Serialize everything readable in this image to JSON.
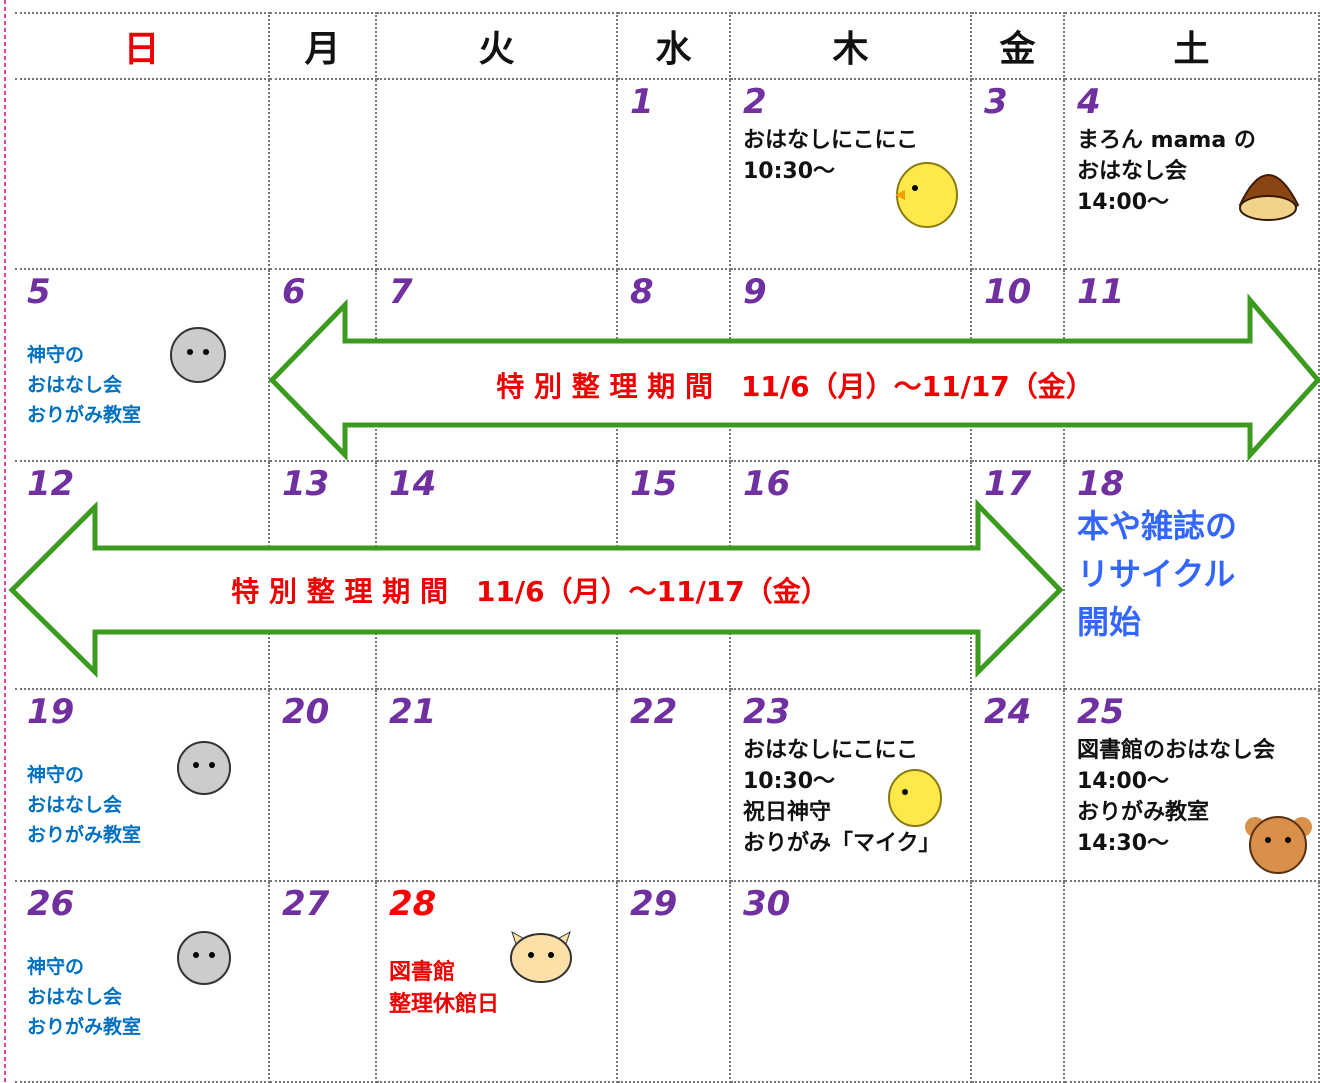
{
  "weekdays": [
    "日",
    "月",
    "火",
    "水",
    "木",
    "金",
    "土"
  ],
  "weeks": [
    [
      {},
      {},
      {},
      {
        "day": 1
      },
      {
        "day": 2,
        "style": "black",
        "lines": [
          "おはなしにこにこ",
          "10:30～"
        ]
      },
      {
        "day": 3
      },
      {
        "day": 4,
        "style": "black",
        "lines": [
          "まろん mama の",
          "おはなし会",
          "14:00～"
        ]
      }
    ],
    [
      {
        "day": 5,
        "style": "blue",
        "lines": [
          "神守の",
          "おはなし会",
          "おりがみ教室"
        ]
      },
      {
        "day": 6
      },
      {
        "day": 7
      },
      {
        "day": 8
      },
      {
        "day": 9
      },
      {
        "day": 10
      },
      {
        "day": 11
      }
    ],
    [
      {
        "day": 12
      },
      {
        "day": 13
      },
      {
        "day": 14
      },
      {
        "day": 15
      },
      {
        "day": 16
      },
      {
        "day": 17
      },
      {
        "day": 18,
        "style": "big-blue",
        "lines": [
          "本や雑誌の",
          "リサイクル",
          "開始"
        ]
      }
    ],
    [
      {
        "day": 19,
        "style": "blue",
        "lines": [
          "神守の",
          "おはなし会",
          "おりがみ教室"
        ]
      },
      {
        "day": 20
      },
      {
        "day": 21
      },
      {
        "day": 22
      },
      {
        "day": 23,
        "style": "black",
        "lines": [
          "おはなしにこにこ",
          "10:30～",
          "祝日神守",
          "おりがみ「マイク」"
        ]
      },
      {
        "day": 24
      },
      {
        "day": 25,
        "style": "black",
        "lines": [
          "図書館のおはなし会",
          "14:00～",
          "おりがみ教室",
          "14:30～"
        ]
      }
    ],
    [
      {
        "day": 26,
        "style": "blue",
        "lines": [
          "神守の",
          "おはなし会",
          "おりがみ教室"
        ]
      },
      {
        "day": 27
      },
      {
        "day": 28,
        "day_color": "red",
        "style": "red",
        "lines": [
          "図書館",
          "整理休館日"
        ]
      },
      {
        "day": 29
      },
      {
        "day": 30
      },
      {},
      {}
    ]
  ],
  "arrows": [
    {
      "text": "特 別 整 理 期 間　11/6（月）～11/17（金）"
    },
    {
      "text": "特 別 整 理 期 間　11/6（月）～11/17（金）"
    }
  ]
}
